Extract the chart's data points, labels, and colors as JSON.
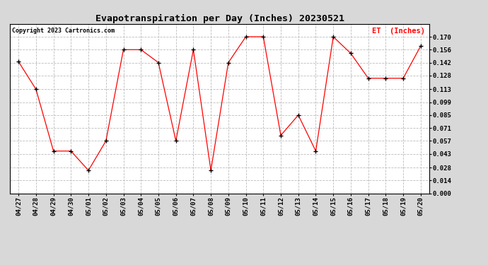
{
  "title": "Evapotranspiration per Day (Inches) 20230521",
  "copyright": "Copyright 2023 Cartronics.com",
  "legend_label": "ET  (Inches)",
  "dates": [
    "04/27",
    "04/28",
    "04/29",
    "04/30",
    "05/01",
    "05/02",
    "05/03",
    "05/04",
    "05/05",
    "05/06",
    "05/07",
    "05/08",
    "05/09",
    "05/10",
    "05/11",
    "05/12",
    "05/13",
    "05/14",
    "05/15",
    "05/16",
    "05/17",
    "05/18",
    "05/19",
    "05/20"
  ],
  "values": [
    0.143,
    0.113,
    0.046,
    0.046,
    0.025,
    0.057,
    0.156,
    0.156,
    0.142,
    0.057,
    0.156,
    0.025,
    0.142,
    0.17,
    0.17,
    0.063,
    0.085,
    0.046,
    0.17,
    0.152,
    0.125,
    0.125,
    0.125,
    0.16
  ],
  "ylim": [
    0.0,
    0.184
  ],
  "yticks": [
    0.0,
    0.014,
    0.028,
    0.043,
    0.057,
    0.071,
    0.085,
    0.099,
    0.113,
    0.128,
    0.142,
    0.156,
    0.17
  ],
  "line_color": "red",
  "marker_color": "black",
  "marker": "+",
  "bg_color": "#d8d8d8",
  "plot_bg_color": "#ffffff",
  "grid_color": "#bbbbbb",
  "title_fontsize": 9.5,
  "copyright_fontsize": 6.0,
  "legend_fontsize": 7.5,
  "tick_fontsize": 6.5,
  "copyright_color": "black",
  "legend_color": "red"
}
